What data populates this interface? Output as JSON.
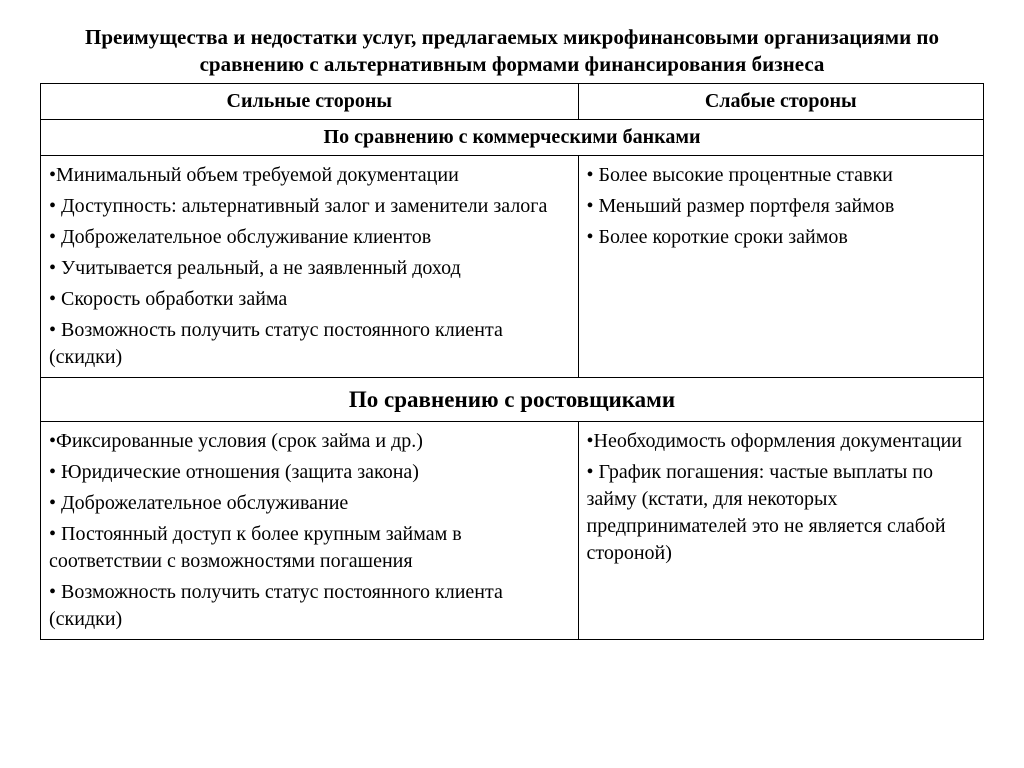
{
  "title": "Преимущества и недостатки услуг, предлагаемых микрофинансовыми организациями по сравнению с альтернативным формами финансирования бизнеса",
  "columns": {
    "strong": "Сильные стороны",
    "weak": "Слабые стороны"
  },
  "sections": [
    {
      "heading": "По сравнению с коммерческими банками",
      "heading_big": false,
      "strong": [
        "Минимальный объем требуемой документации",
        "Доступность: альтернативный залог и заменители залога",
        "Доброжелательное обслуживание клиентов",
        "Учитывается реальный, а не заявленный доход",
        "Скорость обработки займа",
        "Возможность получить статус постоянного клиента (скидки)"
      ],
      "weak": [
        "Более высокие процентные ставки",
        "Меньший размер портфеля займов",
        "Более короткие сроки займов"
      ]
    },
    {
      "heading": "По сравнению с ростовщиками",
      "heading_big": true,
      "strong": [
        "Фиксированные условия (срок займа и др.)",
        "Юридические отношения (защита закона)",
        "Доброжелательное обслуживание",
        "Постоянный доступ к более крупным займам в соответствии с возможностями погашения",
        "Возможность получить статус постоянного клиента (скидки)"
      ],
      "weak": [
        "Необходимость оформления документации",
        "График погашения: частые выплаты по займу (кстати, для некоторых предпринимателей это не является слабой стороной)"
      ]
    }
  ]
}
